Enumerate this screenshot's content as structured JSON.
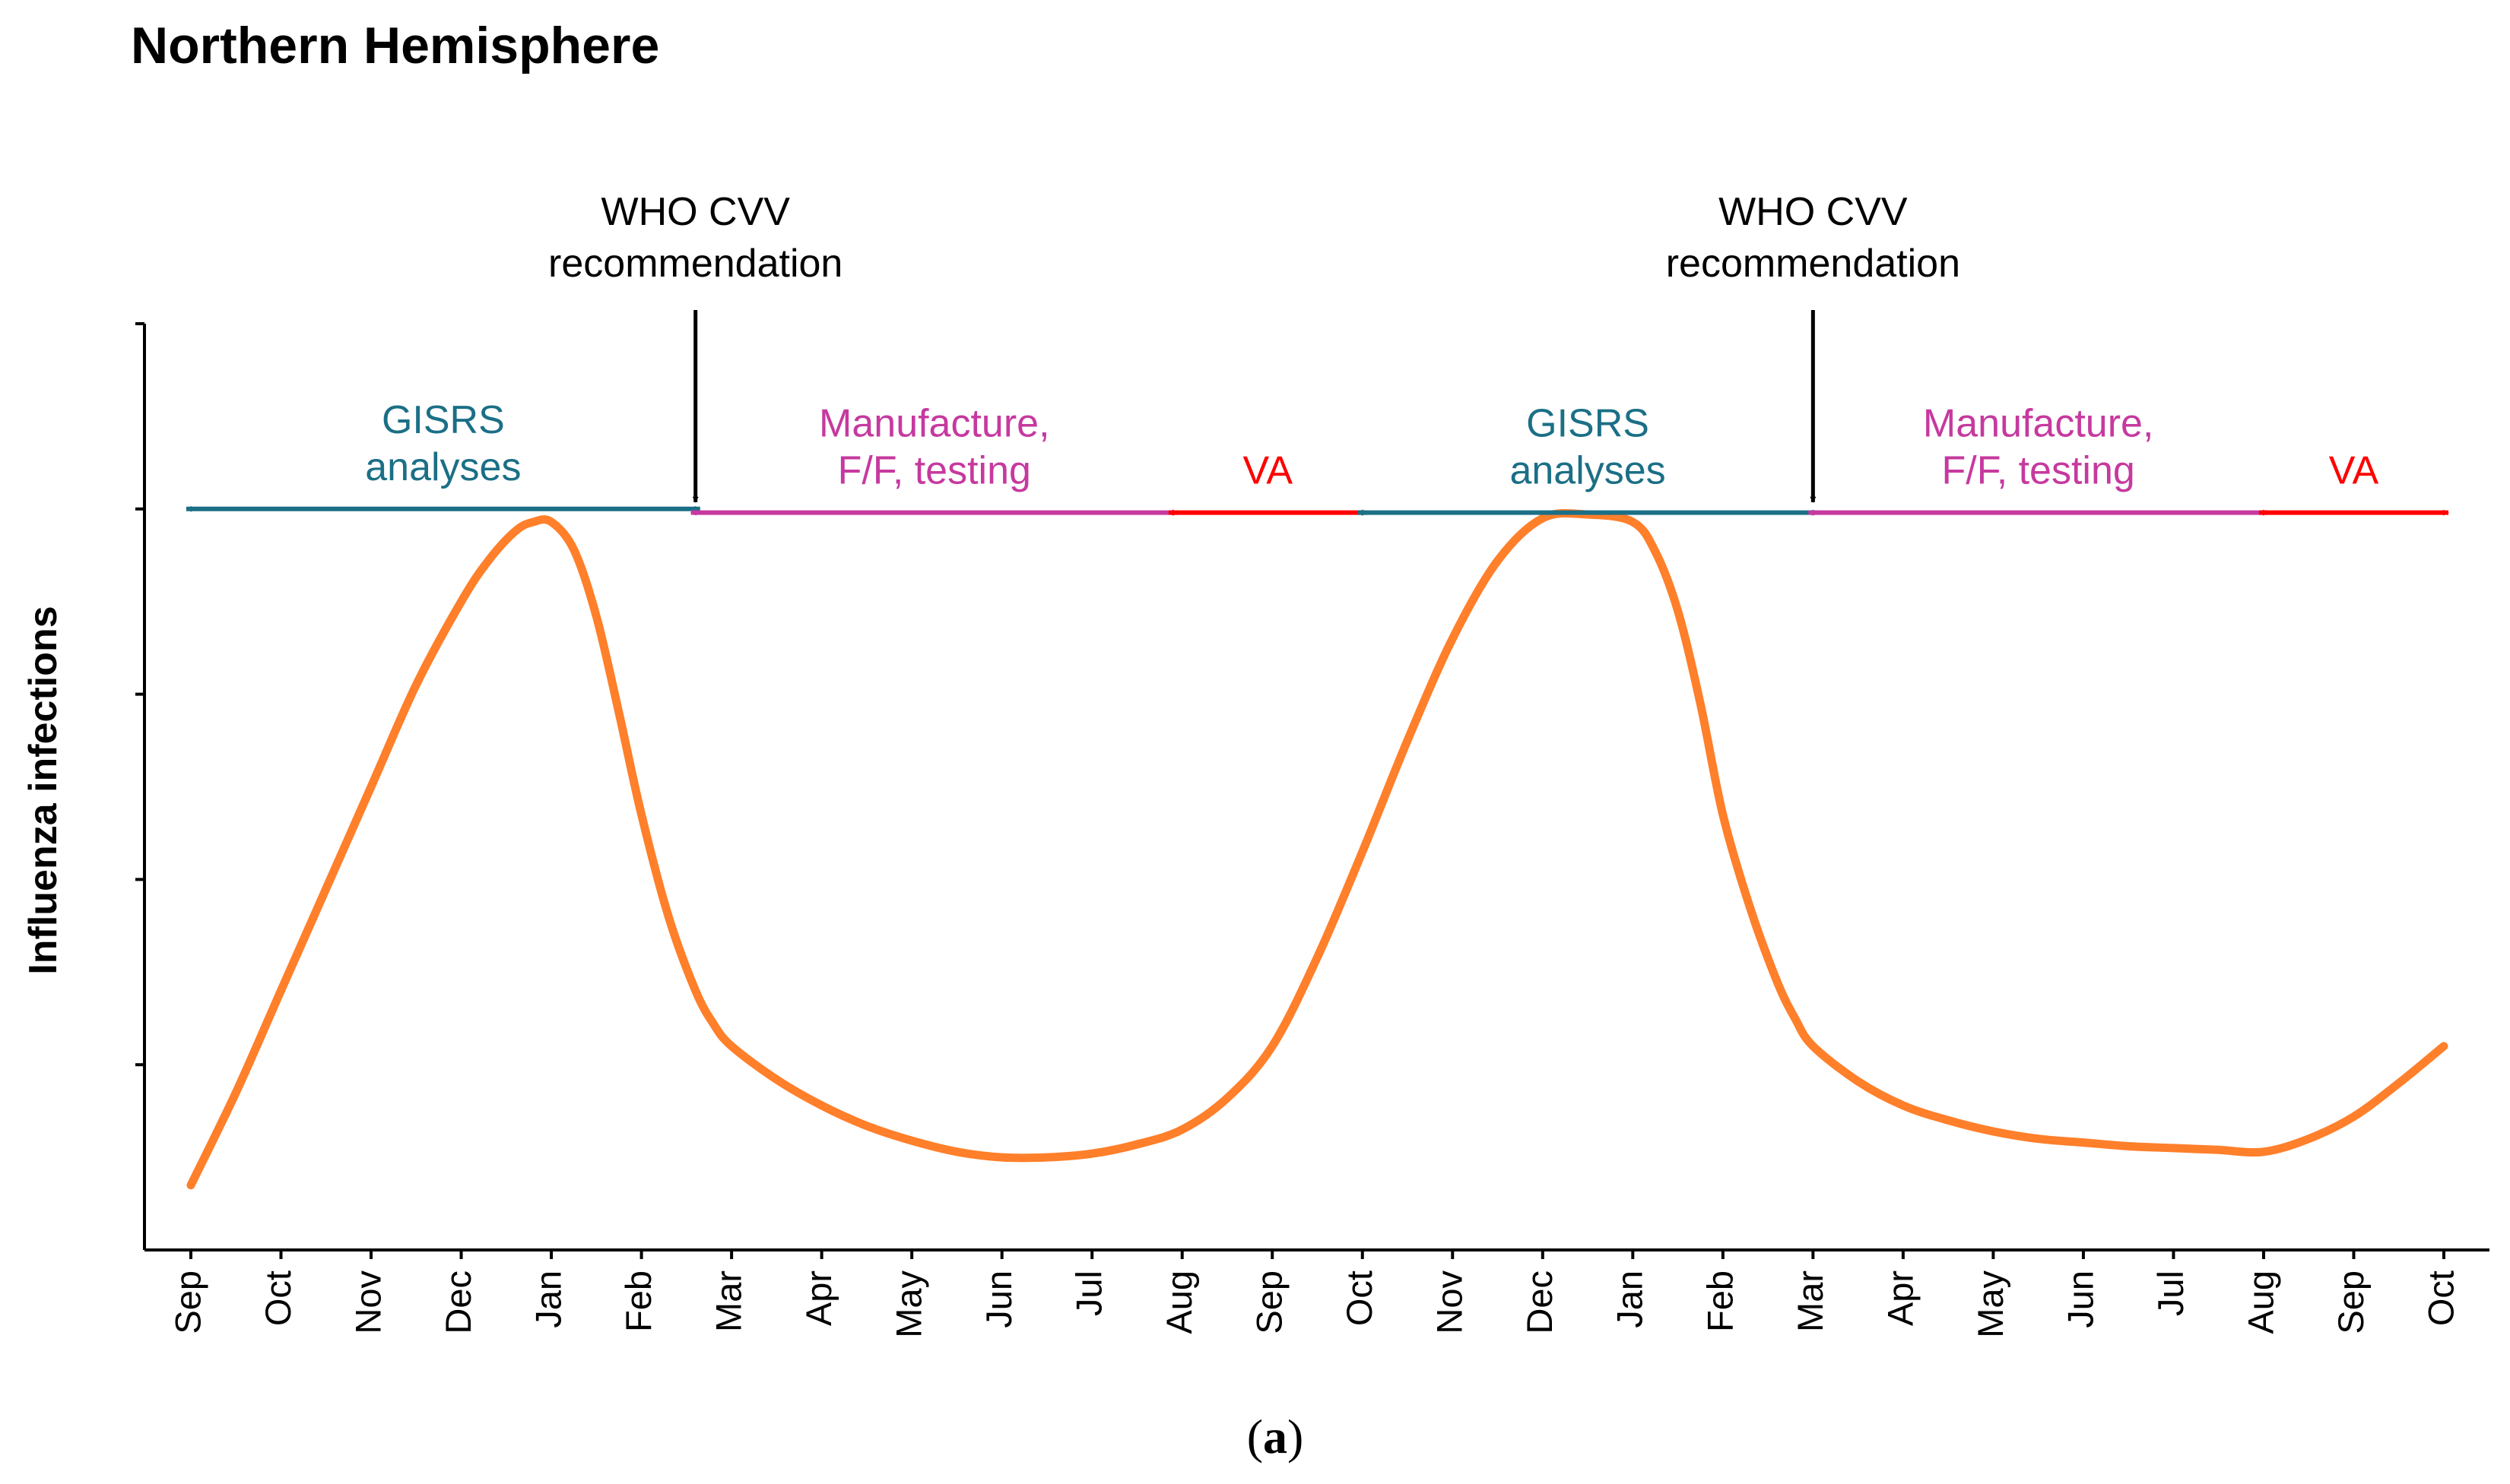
{
  "chart_data": {
    "type": "line",
    "title": "Northern Hemisphere",
    "xlabel": "",
    "ylabel": "Influenza infections",
    "caption_open": "(",
    "caption_letter": "a",
    "caption_close": ")",
    "x_ticks": [
      "Sep",
      "Oct",
      "Nov",
      "Dec",
      "Jan",
      "Feb",
      "Mar",
      "Apr",
      "May",
      "Jun",
      "Jul",
      "Aug",
      "Sep",
      "Oct",
      "Nov",
      "Dec",
      "Jan",
      "Feb",
      "Mar",
      "Apr",
      "May",
      "Jun",
      "Jul",
      "Aug",
      "Sep",
      "Oct"
    ],
    "xlim": [
      0,
      25
    ],
    "ylim": [
      0,
      5
    ],
    "y_tick_values": [
      1,
      2,
      3,
      4,
      5
    ],
    "y_tick_labels": [],
    "grid": false,
    "series": [
      {
        "name": "Influenza infections",
        "color": "#ff7f2a",
        "x": [
          0,
          0.5,
          1,
          1.5,
          2,
          2.5,
          3,
          3.3,
          3.6,
          3.8,
          4,
          4.25,
          4.5,
          4.75,
          5,
          5.3,
          5.6,
          5.8,
          6,
          6.5,
          7,
          7.5,
          8,
          8.5,
          9,
          9.5,
          10,
          10.5,
          11,
          11.5,
          12,
          12.5,
          13,
          13.5,
          14,
          14.5,
          15,
          15.5,
          16,
          16.25,
          16.5,
          16.75,
          17,
          17.3,
          17.6,
          17.8,
          18,
          18.5,
          19,
          19.5,
          20,
          20.5,
          21,
          21.5,
          22,
          22.5,
          23,
          23.5,
          24,
          24.5,
          25
        ],
        "y": [
          0.35,
          0.85,
          1.4,
          1.95,
          2.5,
          3.05,
          3.5,
          3.72,
          3.88,
          3.93,
          3.93,
          3.78,
          3.42,
          2.9,
          2.35,
          1.8,
          1.4,
          1.22,
          1.1,
          0.92,
          0.78,
          0.67,
          0.59,
          0.53,
          0.5,
          0.5,
          0.52,
          0.57,
          0.65,
          0.82,
          1.1,
          1.58,
          2.15,
          2.75,
          3.3,
          3.72,
          3.95,
          3.97,
          3.93,
          3.77,
          3.45,
          2.95,
          2.35,
          1.85,
          1.45,
          1.25,
          1.1,
          0.91,
          0.78,
          0.7,
          0.64,
          0.6,
          0.58,
          0.56,
          0.55,
          0.54,
          0.53,
          0.6,
          0.72,
          0.9,
          1.1
        ]
      }
    ],
    "annotations": [
      {
        "id": "gisrs-1",
        "lines": [
          "GISRS",
          "analyses"
        ],
        "color": "#1b6f86",
        "start": 0,
        "end": 5.6,
        "y": 4.0,
        "arrow": "both"
      },
      {
        "id": "manufacture-1",
        "lines": [
          "Manufacture,",
          "F/F, testing"
        ],
        "color": "#c6399f",
        "start": 5.6,
        "end": 10.9,
        "y": 3.98,
        "arrow": "both"
      },
      {
        "id": "va-1",
        "lines": [
          "VA"
        ],
        "color": "#ff0000",
        "start": 10.9,
        "end": 13.0,
        "y": 3.98,
        "arrow": "both"
      },
      {
        "id": "gisrs-2",
        "lines": [
          "GISRS",
          "analyses"
        ],
        "color": "#1b6f86",
        "start": 13.0,
        "end": 18.0,
        "y": 3.98,
        "arrow": "both"
      },
      {
        "id": "manufacture-2",
        "lines": [
          "Manufacture,",
          "F/F, testing"
        ],
        "color": "#c6399f",
        "start": 18.0,
        "end": 23.0,
        "y": 3.98,
        "arrow": "both"
      },
      {
        "id": "va-2",
        "lines": [
          "VA"
        ],
        "color": "#ff0000",
        "start": 23.0,
        "end": 25.0,
        "y": 3.98,
        "arrow": "both"
      }
    ],
    "markers": [
      {
        "id": "who-cvv-1",
        "lines": [
          "WHO CVV",
          "recommendation"
        ],
        "color": "#000000",
        "x": 5.6,
        "y_arrow_tip": 4.02
      },
      {
        "id": "who-cvv-2",
        "lines": [
          "WHO CVV",
          "recommendation"
        ],
        "color": "#000000",
        "x": 18.0,
        "y_arrow_tip": 4.02
      }
    ],
    "colors": {
      "axis": "#000000",
      "curve": "#ff7f2a"
    }
  }
}
